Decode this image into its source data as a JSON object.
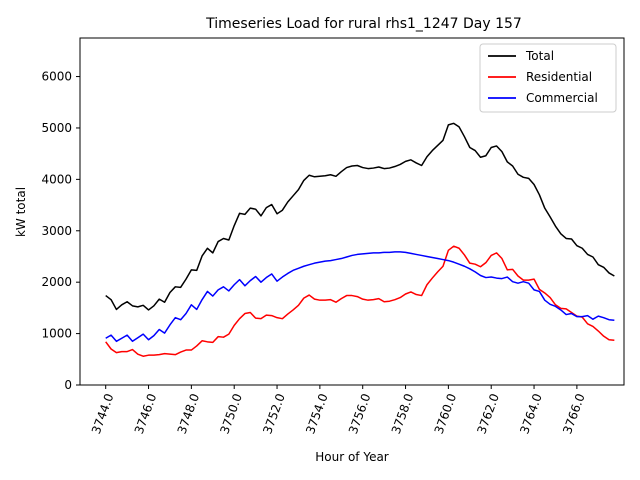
{
  "chart_data": {
    "type": "line",
    "title": "Timeseries Load for rural rhs1_1247  Day 157",
    "xlabel": "Hour of Year",
    "ylabel": "kW total",
    "xlim": [
      3742.8,
      3768.2
    ],
    "ylim": [
      0,
      6750
    ],
    "xticks": [
      3744,
      3746,
      3748,
      3750,
      3752,
      3754,
      3756,
      3758,
      3760,
      3762,
      3764,
      3766
    ],
    "xtick_labels": [
      "3744.0",
      "3746.0",
      "3748.0",
      "3750.0",
      "3752.0",
      "3754.0",
      "3756.0",
      "3758.0",
      "3760.0",
      "3762.0",
      "3764.0",
      "3766.0"
    ],
    "yticks": [
      0,
      1000,
      2000,
      3000,
      4000,
      5000,
      6000
    ],
    "ytick_labels": [
      "0",
      "1000",
      "2000",
      "3000",
      "4000",
      "5000",
      "6000"
    ],
    "legend_position": "top-right",
    "series": [
      {
        "name": "Total",
        "color": "#000000",
        "points": [
          [
            3744.0,
            1740
          ],
          [
            3744.25,
            1660
          ],
          [
            3744.5,
            1470
          ],
          [
            3744.75,
            1560
          ],
          [
            3745.0,
            1620
          ],
          [
            3745.25,
            1540
          ],
          [
            3745.5,
            1520
          ],
          [
            3745.75,
            1550
          ],
          [
            3746.0,
            1460
          ],
          [
            3746.25,
            1540
          ],
          [
            3746.5,
            1670
          ],
          [
            3746.75,
            1610
          ],
          [
            3747.0,
            1800
          ],
          [
            3747.25,
            1910
          ],
          [
            3747.5,
            1900
          ],
          [
            3747.75,
            2060
          ],
          [
            3748.0,
            2240
          ],
          [
            3748.25,
            2230
          ],
          [
            3748.5,
            2510
          ],
          [
            3748.75,
            2660
          ],
          [
            3749.0,
            2570
          ],
          [
            3749.25,
            2790
          ],
          [
            3749.5,
            2850
          ],
          [
            3749.75,
            2820
          ],
          [
            3750.0,
            3100
          ],
          [
            3750.25,
            3340
          ],
          [
            3750.5,
            3320
          ],
          [
            3750.75,
            3440
          ],
          [
            3751.0,
            3420
          ],
          [
            3751.25,
            3290
          ],
          [
            3751.5,
            3450
          ],
          [
            3751.75,
            3510
          ],
          [
            3752.0,
            3330
          ],
          [
            3752.25,
            3400
          ],
          [
            3752.5,
            3560
          ],
          [
            3752.75,
            3680
          ],
          [
            3753.0,
            3800
          ],
          [
            3753.25,
            3980
          ],
          [
            3753.5,
            4080
          ],
          [
            3753.75,
            4050
          ],
          [
            3754.0,
            4060
          ],
          [
            3754.25,
            4070
          ],
          [
            3754.5,
            4090
          ],
          [
            3754.75,
            4060
          ],
          [
            3755.0,
            4150
          ],
          [
            3755.25,
            4230
          ],
          [
            3755.5,
            4260
          ],
          [
            3755.75,
            4270
          ],
          [
            3756.0,
            4230
          ],
          [
            3756.25,
            4210
          ],
          [
            3756.5,
            4220
          ],
          [
            3756.75,
            4240
          ],
          [
            3757.0,
            4210
          ],
          [
            3757.25,
            4220
          ],
          [
            3757.5,
            4250
          ],
          [
            3757.75,
            4290
          ],
          [
            3758.0,
            4350
          ],
          [
            3758.25,
            4380
          ],
          [
            3758.5,
            4320
          ],
          [
            3758.75,
            4270
          ],
          [
            3759.0,
            4440
          ],
          [
            3759.25,
            4560
          ],
          [
            3759.5,
            4660
          ],
          [
            3759.75,
            4760
          ],
          [
            3760.0,
            5060
          ],
          [
            3760.25,
            5090
          ],
          [
            3760.5,
            5020
          ],
          [
            3760.75,
            4830
          ],
          [
            3761.0,
            4620
          ],
          [
            3761.25,
            4560
          ],
          [
            3761.5,
            4430
          ],
          [
            3761.75,
            4460
          ],
          [
            3762.0,
            4620
          ],
          [
            3762.25,
            4650
          ],
          [
            3762.5,
            4540
          ],
          [
            3762.75,
            4340
          ],
          [
            3763.0,
            4260
          ],
          [
            3763.25,
            4100
          ],
          [
            3763.5,
            4040
          ],
          [
            3763.75,
            4020
          ],
          [
            3764.0,
            3900
          ],
          [
            3764.25,
            3700
          ],
          [
            3764.5,
            3440
          ],
          [
            3764.75,
            3270
          ],
          [
            3765.0,
            3090
          ],
          [
            3765.25,
            2940
          ],
          [
            3765.5,
            2850
          ],
          [
            3765.75,
            2840
          ],
          [
            3766.0,
            2710
          ],
          [
            3766.25,
            2660
          ],
          [
            3766.5,
            2540
          ],
          [
            3766.75,
            2490
          ],
          [
            3767.0,
            2340
          ],
          [
            3767.25,
            2290
          ],
          [
            3767.5,
            2180
          ],
          [
            3767.75,
            2120
          ]
        ]
      },
      {
        "name": "Residential",
        "color": "#ff0000",
        "points": [
          [
            3744.0,
            840
          ],
          [
            3744.25,
            700
          ],
          [
            3744.5,
            630
          ],
          [
            3744.75,
            650
          ],
          [
            3745.0,
            650
          ],
          [
            3745.25,
            690
          ],
          [
            3745.5,
            600
          ],
          [
            3745.75,
            560
          ],
          [
            3746.0,
            580
          ],
          [
            3746.25,
            580
          ],
          [
            3746.5,
            590
          ],
          [
            3746.75,
            610
          ],
          [
            3747.0,
            600
          ],
          [
            3747.25,
            590
          ],
          [
            3747.5,
            640
          ],
          [
            3747.75,
            680
          ],
          [
            3748.0,
            680
          ],
          [
            3748.25,
            760
          ],
          [
            3748.5,
            860
          ],
          [
            3748.75,
            840
          ],
          [
            3749.0,
            830
          ],
          [
            3749.25,
            940
          ],
          [
            3749.5,
            930
          ],
          [
            3749.75,
            990
          ],
          [
            3750.0,
            1160
          ],
          [
            3750.25,
            1290
          ],
          [
            3750.5,
            1390
          ],
          [
            3750.75,
            1410
          ],
          [
            3751.0,
            1300
          ],
          [
            3751.25,
            1290
          ],
          [
            3751.5,
            1360
          ],
          [
            3751.75,
            1350
          ],
          [
            3752.0,
            1310
          ],
          [
            3752.25,
            1290
          ],
          [
            3752.5,
            1380
          ],
          [
            3752.75,
            1460
          ],
          [
            3753.0,
            1550
          ],
          [
            3753.25,
            1690
          ],
          [
            3753.5,
            1750
          ],
          [
            3753.75,
            1670
          ],
          [
            3754.0,
            1650
          ],
          [
            3754.25,
            1650
          ],
          [
            3754.5,
            1660
          ],
          [
            3754.75,
            1610
          ],
          [
            3755.0,
            1680
          ],
          [
            3755.25,
            1740
          ],
          [
            3755.5,
            1740
          ],
          [
            3755.75,
            1720
          ],
          [
            3756.0,
            1670
          ],
          [
            3756.25,
            1650
          ],
          [
            3756.5,
            1660
          ],
          [
            3756.75,
            1680
          ],
          [
            3757.0,
            1620
          ],
          [
            3757.25,
            1630
          ],
          [
            3757.5,
            1660
          ],
          [
            3757.75,
            1700
          ],
          [
            3758.0,
            1770
          ],
          [
            3758.25,
            1810
          ],
          [
            3758.5,
            1760
          ],
          [
            3758.75,
            1740
          ],
          [
            3759.0,
            1950
          ],
          [
            3759.25,
            2080
          ],
          [
            3759.5,
            2200
          ],
          [
            3759.75,
            2310
          ],
          [
            3760.0,
            2620
          ],
          [
            3760.25,
            2700
          ],
          [
            3760.5,
            2660
          ],
          [
            3760.75,
            2530
          ],
          [
            3761.0,
            2370
          ],
          [
            3761.25,
            2350
          ],
          [
            3761.5,
            2300
          ],
          [
            3761.75,
            2380
          ],
          [
            3762.0,
            2520
          ],
          [
            3762.25,
            2570
          ],
          [
            3762.5,
            2460
          ],
          [
            3762.75,
            2240
          ],
          [
            3763.0,
            2250
          ],
          [
            3763.25,
            2120
          ],
          [
            3763.5,
            2040
          ],
          [
            3763.75,
            2040
          ],
          [
            3764.0,
            2060
          ],
          [
            3764.25,
            1860
          ],
          [
            3764.5,
            1790
          ],
          [
            3764.75,
            1700
          ],
          [
            3765.0,
            1560
          ],
          [
            3765.25,
            1490
          ],
          [
            3765.5,
            1480
          ],
          [
            3765.75,
            1410
          ],
          [
            3766.0,
            1340
          ],
          [
            3766.25,
            1320
          ],
          [
            3766.5,
            1190
          ],
          [
            3766.75,
            1140
          ],
          [
            3767.0,
            1050
          ],
          [
            3767.25,
            950
          ],
          [
            3767.5,
            880
          ],
          [
            3767.75,
            870
          ]
        ]
      },
      {
        "name": "Commercial",
        "color": "#0000ff",
        "points": [
          [
            3744.0,
            910
          ],
          [
            3744.25,
            970
          ],
          [
            3744.5,
            850
          ],
          [
            3744.75,
            910
          ],
          [
            3745.0,
            970
          ],
          [
            3745.25,
            850
          ],
          [
            3745.5,
            920
          ],
          [
            3745.75,
            990
          ],
          [
            3746.0,
            880
          ],
          [
            3746.25,
            960
          ],
          [
            3746.5,
            1080
          ],
          [
            3746.75,
            1010
          ],
          [
            3747.0,
            1170
          ],
          [
            3747.25,
            1310
          ],
          [
            3747.5,
            1270
          ],
          [
            3747.75,
            1390
          ],
          [
            3748.0,
            1560
          ],
          [
            3748.25,
            1470
          ],
          [
            3748.5,
            1660
          ],
          [
            3748.75,
            1820
          ],
          [
            3749.0,
            1730
          ],
          [
            3749.25,
            1850
          ],
          [
            3749.5,
            1910
          ],
          [
            3749.75,
            1830
          ],
          [
            3750.0,
            1950
          ],
          [
            3750.25,
            2050
          ],
          [
            3750.5,
            1930
          ],
          [
            3750.75,
            2030
          ],
          [
            3751.0,
            2110
          ],
          [
            3751.25,
            2000
          ],
          [
            3751.5,
            2090
          ],
          [
            3751.75,
            2160
          ],
          [
            3752.0,
            2020
          ],
          [
            3752.25,
            2100
          ],
          [
            3752.5,
            2170
          ],
          [
            3752.75,
            2230
          ],
          [
            3753.0,
            2270
          ],
          [
            3753.25,
            2310
          ],
          [
            3753.5,
            2340
          ],
          [
            3753.75,
            2370
          ],
          [
            3754.0,
            2390
          ],
          [
            3754.25,
            2410
          ],
          [
            3754.5,
            2420
          ],
          [
            3754.75,
            2440
          ],
          [
            3755.0,
            2460
          ],
          [
            3755.25,
            2490
          ],
          [
            3755.5,
            2520
          ],
          [
            3755.75,
            2540
          ],
          [
            3756.0,
            2550
          ],
          [
            3756.25,
            2560
          ],
          [
            3756.5,
            2570
          ],
          [
            3756.75,
            2570
          ],
          [
            3757.0,
            2580
          ],
          [
            3757.25,
            2580
          ],
          [
            3757.5,
            2590
          ],
          [
            3757.75,
            2590
          ],
          [
            3758.0,
            2580
          ],
          [
            3758.25,
            2560
          ],
          [
            3758.5,
            2540
          ],
          [
            3758.75,
            2520
          ],
          [
            3759.0,
            2500
          ],
          [
            3759.25,
            2480
          ],
          [
            3759.5,
            2460
          ],
          [
            3759.75,
            2440
          ],
          [
            3760.0,
            2420
          ],
          [
            3760.25,
            2390
          ],
          [
            3760.5,
            2350
          ],
          [
            3760.75,
            2310
          ],
          [
            3761.0,
            2260
          ],
          [
            3761.25,
            2200
          ],
          [
            3761.5,
            2130
          ],
          [
            3761.75,
            2090
          ],
          [
            3762.0,
            2100
          ],
          [
            3762.25,
            2080
          ],
          [
            3762.5,
            2070
          ],
          [
            3762.75,
            2100
          ],
          [
            3763.0,
            2010
          ],
          [
            3763.25,
            1980
          ],
          [
            3763.5,
            2010
          ],
          [
            3763.75,
            1980
          ],
          [
            3764.0,
            1850
          ],
          [
            3764.25,
            1820
          ],
          [
            3764.5,
            1650
          ],
          [
            3764.75,
            1570
          ],
          [
            3765.0,
            1530
          ],
          [
            3765.25,
            1460
          ],
          [
            3765.5,
            1370
          ],
          [
            3765.75,
            1390
          ],
          [
            3766.0,
            1330
          ],
          [
            3766.25,
            1330
          ],
          [
            3766.5,
            1350
          ],
          [
            3766.75,
            1280
          ],
          [
            3767.0,
            1340
          ],
          [
            3767.25,
            1310
          ],
          [
            3767.5,
            1270
          ],
          [
            3767.75,
            1260
          ]
        ]
      }
    ]
  }
}
